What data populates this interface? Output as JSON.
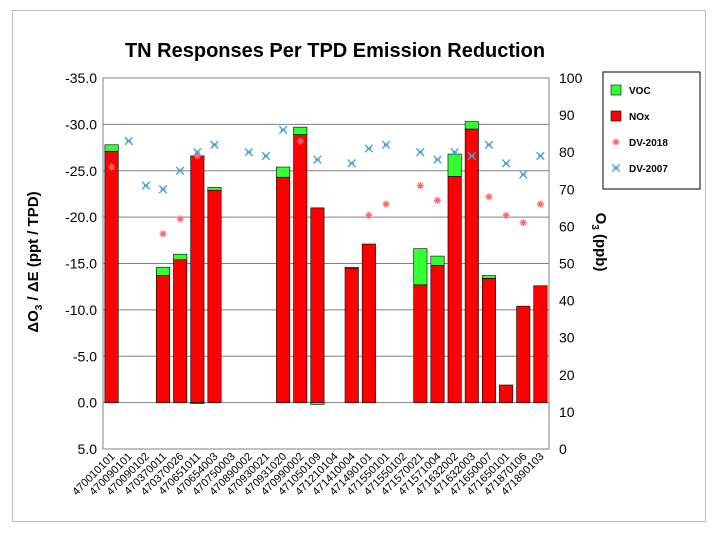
{
  "chart_data": {
    "type": "bar",
    "title": "TN Responses Per TPD Emission Reduction",
    "ylabel_left_parts": {
      "delta1": "Δ",
      "o": "O",
      "sub": "3",
      "rest": " / ",
      "delta2": "Δ",
      "tail": "E (ppt / TPD)"
    },
    "ylabel_right_parts": {
      "o": "O",
      "sub": "3",
      "rest": " (ppb)"
    },
    "left_axis": {
      "range": [
        -35,
        5
      ],
      "ticks": [
        -35,
        -30,
        -25,
        -20,
        -15,
        -10,
        -5,
        0,
        5
      ],
      "tick_labels": [
        "-35.0",
        "-30.0",
        "-25.0",
        "-20.0",
        "-15.0",
        "-10.0",
        "-5.0",
        "0.0",
        "5.0"
      ]
    },
    "right_axis": {
      "range": [
        0,
        100
      ],
      "ticks": [
        0,
        10,
        20,
        30,
        40,
        50,
        60,
        70,
        80,
        90,
        100
      ],
      "tick_labels": [
        "0",
        "10",
        "20",
        "30",
        "40",
        "50",
        "60",
        "70",
        "80",
        "90",
        "100"
      ]
    },
    "categories": [
      "470010101",
      "470090101",
      "470090102",
      "470370011",
      "470370026",
      "470651011",
      "470654003",
      "470750003",
      "470890002",
      "470930021",
      "470931020",
      "470990002",
      "471050109",
      "471210104",
      "471410004",
      "471490101",
      "471550101",
      "471550102",
      "471570021",
      "471571004",
      "471632002",
      "471632003",
      "471650007",
      "471650101",
      "471870106",
      "471890103"
    ],
    "series": [
      {
        "name": "NOx",
        "color": "#ff0000",
        "axis": "left",
        "values": [
          -27.1,
          null,
          null,
          -13.7,
          -15.4,
          -26.6,
          -22.9,
          null,
          null,
          null,
          -24.3,
          -28.9,
          -21.0,
          null,
          -14.5,
          -17.1,
          null,
          null,
          -12.7,
          -14.8,
          -24.4,
          -29.5,
          -13.4,
          -1.9,
          -10.4,
          -12.6
        ]
      },
      {
        "name": "VOC",
        "color": "#33ff33",
        "axis": "left",
        "values": [
          -0.7,
          null,
          null,
          -0.9,
          -0.6,
          0.1,
          -0.3,
          null,
          null,
          null,
          -1.1,
          -0.8,
          0.2,
          null,
          -0.1,
          null,
          null,
          null,
          -3.9,
          -1.0,
          -2.4,
          -0.8,
          -0.3,
          null,
          null,
          null
        ]
      },
      {
        "name": "DV-2018",
        "color": "#ff6666",
        "axis": "right",
        "marker": "asterisk",
        "values": [
          76,
          null,
          null,
          58,
          62,
          79,
          null,
          null,
          null,
          null,
          null,
          83,
          null,
          null,
          null,
          63,
          66,
          null,
          71,
          67,
          null,
          null,
          68,
          63,
          61,
          66
        ]
      },
      {
        "name": "DV-2007",
        "color": "#4aa3d9",
        "axis": "right",
        "marker": "x",
        "values": [
          null,
          83,
          71,
          70,
          75,
          80,
          82,
          null,
          80,
          79,
          86,
          null,
          78,
          null,
          77,
          81,
          82,
          null,
          80,
          78,
          80,
          79,
          82,
          77,
          74,
          79
        ]
      }
    ],
    "legend": {
      "position": "right",
      "entries": [
        "VOC",
        "NOx",
        "DV-2018",
        "DV-2007"
      ]
    },
    "grid": "horizontal"
  }
}
